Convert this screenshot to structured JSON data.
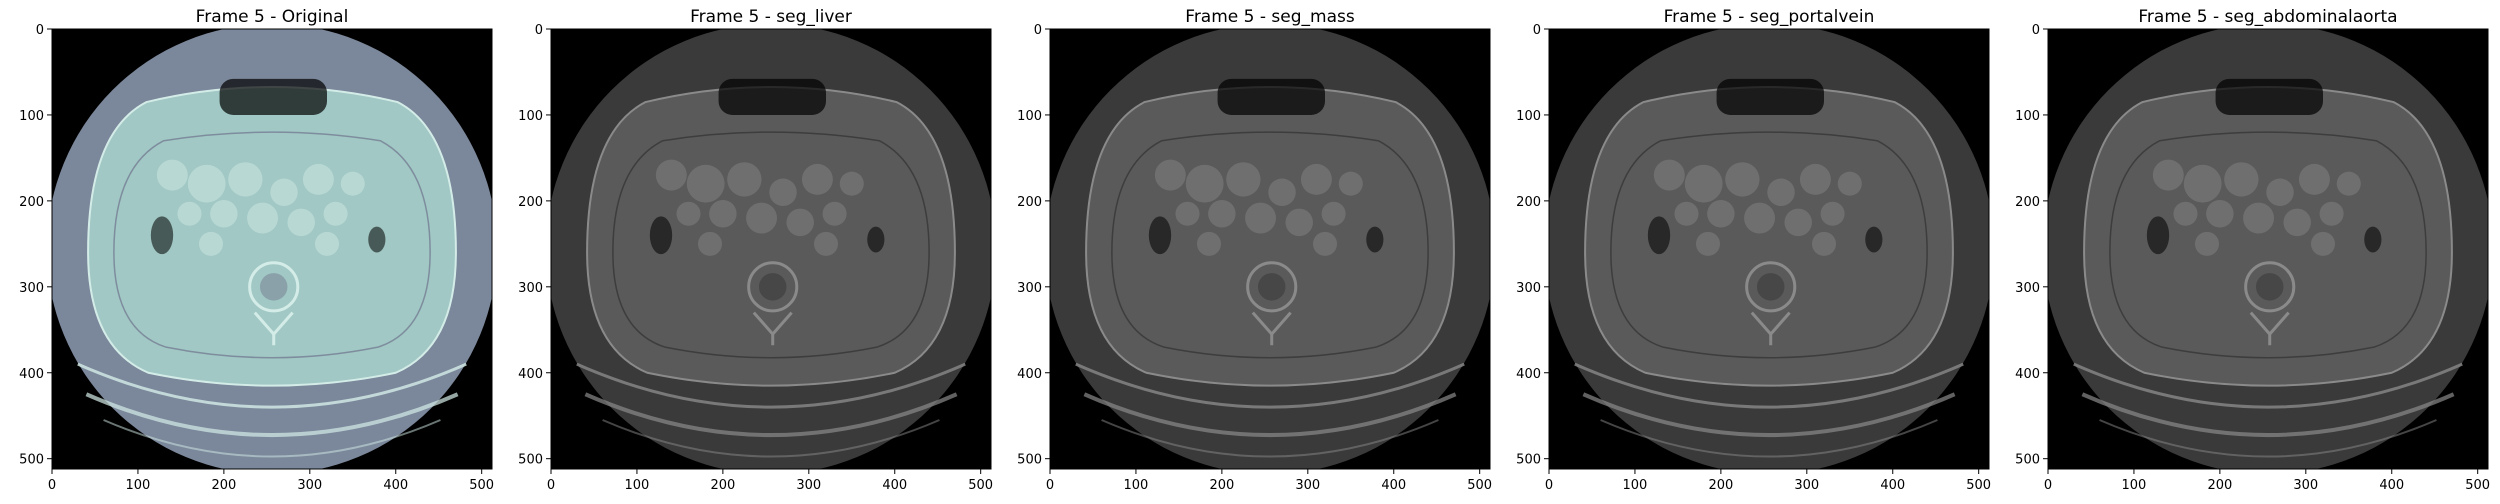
{
  "panels": [
    {
      "title": "Frame 5 - Original",
      "style": "bone"
    },
    {
      "title": "Frame 5 - seg_liver",
      "style": "gray"
    },
    {
      "title": "Frame 5 - seg_mass",
      "style": "gray"
    },
    {
      "title": "Frame 5 - seg_portalvein",
      "style": "gray"
    },
    {
      "title": "Frame 5 - seg_abdominalaorta",
      "style": "gray"
    }
  ],
  "axes": {
    "x_ticks": [
      "0",
      "100",
      "200",
      "300",
      "400",
      "500"
    ],
    "y_ticks": [
      "0",
      "100",
      "200",
      "300",
      "400",
      "500"
    ],
    "range": [
      0,
      512
    ]
  },
  "colors": {
    "bone_field": "#7b879a",
    "bone_body": "#a1c8c4",
    "bone_bright": "#d4ece8",
    "gray_field": "#3a3a3a",
    "gray_body": "#5a5a5a",
    "gray_bright": "#8a8a8a",
    "background": "#000000"
  }
}
